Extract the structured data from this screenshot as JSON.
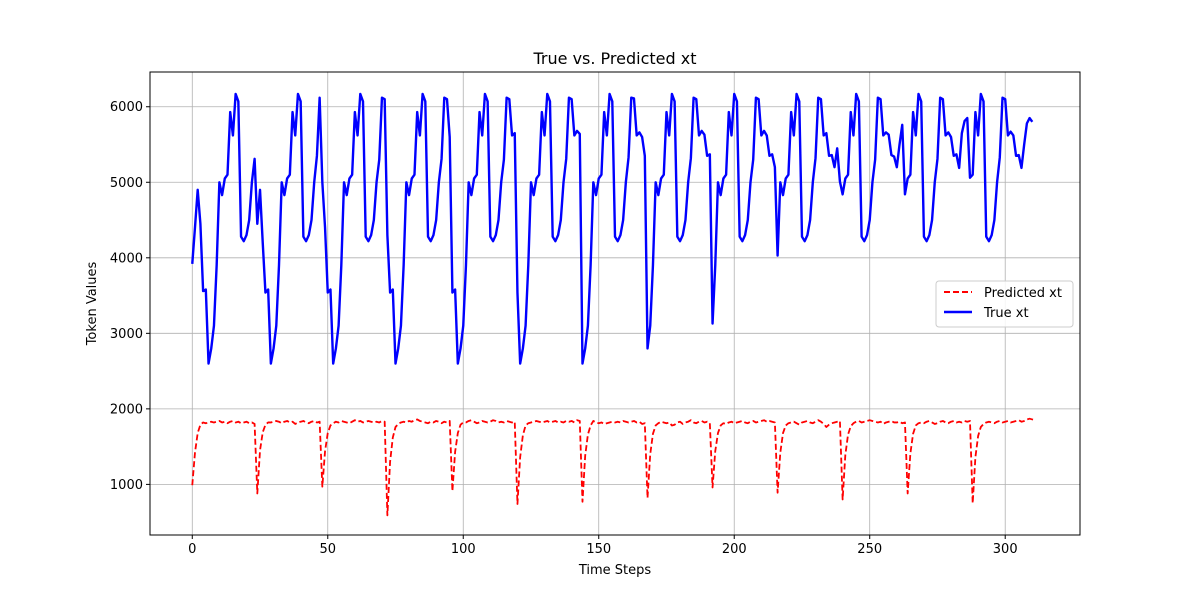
{
  "chart_data": {
    "type": "line",
    "title": "True vs. Predicted xt",
    "xlabel": "Time Steps",
    "ylabel": "Token Values",
    "xlim": [
      -15.6,
      327.6
    ],
    "ylim": [
      330,
      6460
    ],
    "xticks": [
      0,
      50,
      100,
      150,
      200,
      250,
      300
    ],
    "yticks": [
      1000,
      2000,
      3000,
      4000,
      5000,
      6000
    ],
    "grid": true,
    "legend": "center-right",
    "period": 24,
    "series": [
      {
        "name": "Predicted xt",
        "color": "#ff0000",
        "style": "dashed",
        "cycles": [
          [
            990,
            1420,
            1680,
            1790,
            1820,
            1810,
            1820,
            1830,
            1820,
            1830,
            1840,
            1820,
            1830,
            1810,
            1830,
            1840,
            1820,
            1830,
            1810,
            1820,
            1830,
            1810,
            1820,
            1800
          ],
          [
            880,
            1450,
            1690,
            1790,
            1820,
            1820,
            1830,
            1840,
            1830,
            1810,
            1830,
            1840,
            1820,
            1830,
            1800,
            1820,
            1830,
            1840,
            1820,
            1810,
            1830,
            1840,
            1820,
            1830
          ],
          [
            970,
            1440,
            1680,
            1780,
            1810,
            1830,
            1820,
            1840,
            1830,
            1820,
            1810,
            1830,
            1850,
            1830,
            1840,
            1820,
            1830,
            1840,
            1830,
            1820,
            1830,
            1820,
            1840,
            1830
          ],
          [
            590,
            1300,
            1620,
            1760,
            1800,
            1820,
            1830,
            1820,
            1840,
            1830,
            1850,
            1860,
            1840,
            1830,
            1820,
            1810,
            1830,
            1820,
            1840,
            1830,
            1810,
            1830,
            1820,
            1840
          ],
          [
            910,
            1430,
            1680,
            1790,
            1820,
            1820,
            1840,
            1850,
            1830,
            1810,
            1820,
            1840,
            1830,
            1820,
            1830,
            1850,
            1840,
            1820,
            1830,
            1820,
            1840,
            1830,
            1820,
            1830
          ],
          [
            740,
            1360,
            1650,
            1780,
            1810,
            1820,
            1830,
            1840,
            1830,
            1820,
            1830,
            1840,
            1820,
            1830,
            1840,
            1820,
            1830,
            1820,
            1840,
            1830,
            1840,
            1820,
            1850,
            1840
          ],
          [
            770,
            1380,
            1660,
            1780,
            1840,
            1820,
            1810,
            1820,
            1800,
            1810,
            1820,
            1830,
            1820,
            1830,
            1820,
            1840,
            1830,
            1820,
            1830,
            1840,
            1820,
            1830,
            1800,
            1810
          ],
          [
            820,
            1400,
            1670,
            1780,
            1810,
            1830,
            1820,
            1810,
            1820,
            1780,
            1790,
            1820,
            1830,
            1800,
            1820,
            1830,
            1850,
            1820,
            1810,
            1830,
            1840,
            1820,
            1830,
            1810
          ],
          [
            960,
            1440,
            1680,
            1780,
            1810,
            1800,
            1820,
            1830,
            1810,
            1820,
            1830,
            1840,
            1820,
            1810,
            1830,
            1840,
            1820,
            1830,
            1840,
            1850,
            1830,
            1840,
            1830,
            1820
          ],
          [
            890,
            1420,
            1680,
            1780,
            1810,
            1820,
            1830,
            1810,
            1790,
            1820,
            1830,
            1840,
            1820,
            1810,
            1830,
            1850,
            1830,
            1800,
            1760,
            1790,
            1810,
            1820,
            1830,
            1840
          ],
          [
            800,
            1390,
            1660,
            1770,
            1810,
            1830,
            1840,
            1820,
            1830,
            1840,
            1850,
            1840,
            1830,
            1820,
            1830,
            1800,
            1820,
            1830,
            1840,
            1820,
            1820,
            1830,
            1810,
            1820
          ],
          [
            880,
            1410,
            1670,
            1780,
            1810,
            1820,
            1810,
            1830,
            1840,
            1820,
            1800,
            1810,
            1830,
            1840,
            1820,
            1810,
            1830,
            1840,
            1820,
            1830,
            1820,
            1840,
            1830,
            1840
          ],
          [
            750,
            1360,
            1640,
            1760,
            1800,
            1820,
            1830,
            1820,
            1810,
            1830,
            1840,
            1820,
            1830,
            1840,
            1820,
            1830,
            1840,
            1850,
            1830,
            1840,
            1860,
            1870,
            1860,
            1850
          ]
        ]
      },
      {
        "name": "True xt",
        "color": "#0000ff",
        "style": "solid",
        "cycles": [
          [
            3920,
            4400,
            4900,
            4450,
            3560,
            3580,
            2600,
            2800,
            3100,
            3900,
            5000,
            4830,
            5050,
            5100,
            5930,
            5620,
            6170,
            6070,
            4280,
            4220,
            4300,
            4500,
            5000,
            5310
          ],
          [
            4450,
            4900,
            4200,
            3540,
            3580,
            2600,
            2800,
            3100,
            3900,
            5000,
            4830,
            5050,
            5100,
            5930,
            5620,
            6170,
            6070,
            4280,
            4220,
            4300,
            4500,
            5000,
            5350,
            6120
          ],
          [
            5000,
            4400,
            3540,
            3580,
            2600,
            2800,
            3100,
            3900,
            5000,
            4830,
            5050,
            5100,
            5930,
            5620,
            6170,
            6070,
            4280,
            4220,
            4300,
            4500,
            5000,
            5300,
            6120,
            6100
          ],
          [
            4300,
            3540,
            3580,
            2600,
            2800,
            3100,
            3900,
            5000,
            4830,
            5050,
            5100,
            5930,
            5620,
            6170,
            6070,
            4280,
            4220,
            4300,
            4500,
            5000,
            5310,
            6120,
            6100,
            5600
          ],
          [
            3540,
            3580,
            2600,
            2800,
            3100,
            3900,
            5000,
            4830,
            5050,
            5100,
            5930,
            5620,
            6170,
            6070,
            4280,
            4220,
            4300,
            4500,
            5000,
            5300,
            6120,
            6100,
            5620,
            5650
          ],
          [
            3540,
            2600,
            2800,
            3100,
            3900,
            5000,
            4830,
            5050,
            5100,
            5930,
            5620,
            6170,
            6070,
            4280,
            4220,
            4300,
            4500,
            5000,
            5310,
            6120,
            6100,
            5620,
            5680,
            5640
          ],
          [
            2600,
            2800,
            3100,
            3900,
            5000,
            4830,
            5050,
            5100,
            5930,
            5620,
            6170,
            6070,
            4280,
            4220,
            4300,
            4500,
            5000,
            5330,
            6120,
            6110,
            5620,
            5660,
            5600,
            5350
          ],
          [
            2800,
            3100,
            3900,
            5000,
            4830,
            5050,
            5100,
            5930,
            5620,
            6170,
            6070,
            4280,
            4220,
            4300,
            4500,
            5000,
            5320,
            6120,
            6100,
            5620,
            5680,
            5630,
            5350,
            5370
          ],
          [
            3130,
            3900,
            5000,
            4830,
            5050,
            5100,
            5930,
            5620,
            6170,
            6070,
            4280,
            4220,
            4300,
            4500,
            5000,
            5300,
            6120,
            6100,
            5620,
            5680,
            5620,
            5350,
            5370,
            5200
          ],
          [
            4030,
            5000,
            4830,
            5050,
            5100,
            5930,
            5620,
            6170,
            6070,
            4280,
            4220,
            4300,
            4500,
            5000,
            5320,
            6120,
            6100,
            5620,
            5650,
            5350,
            5360,
            5200,
            5450,
            5010
          ],
          [
            4840,
            5050,
            5100,
            5930,
            5620,
            6170,
            6070,
            4280,
            4220,
            4300,
            4500,
            5000,
            5300,
            6120,
            6100,
            5620,
            5660,
            5630,
            5360,
            5340,
            5200,
            5500,
            5760,
            4840
          ],
          [
            5050,
            5100,
            5930,
            5620,
            6170,
            6070,
            4280,
            4220,
            4300,
            4500,
            5000,
            5310,
            6120,
            6100,
            5620,
            5660,
            5600,
            5350,
            5370,
            5190,
            5650,
            5810,
            5850,
            5060
          ],
          [
            5100,
            5930,
            5620,
            6170,
            6070,
            4280,
            4220,
            4300,
            4500,
            5000,
            5330,
            6120,
            6100,
            5620,
            5670,
            5620,
            5350,
            5360,
            5190,
            5500,
            5780,
            5850,
            5800
          ]
        ]
      }
    ]
  }
}
